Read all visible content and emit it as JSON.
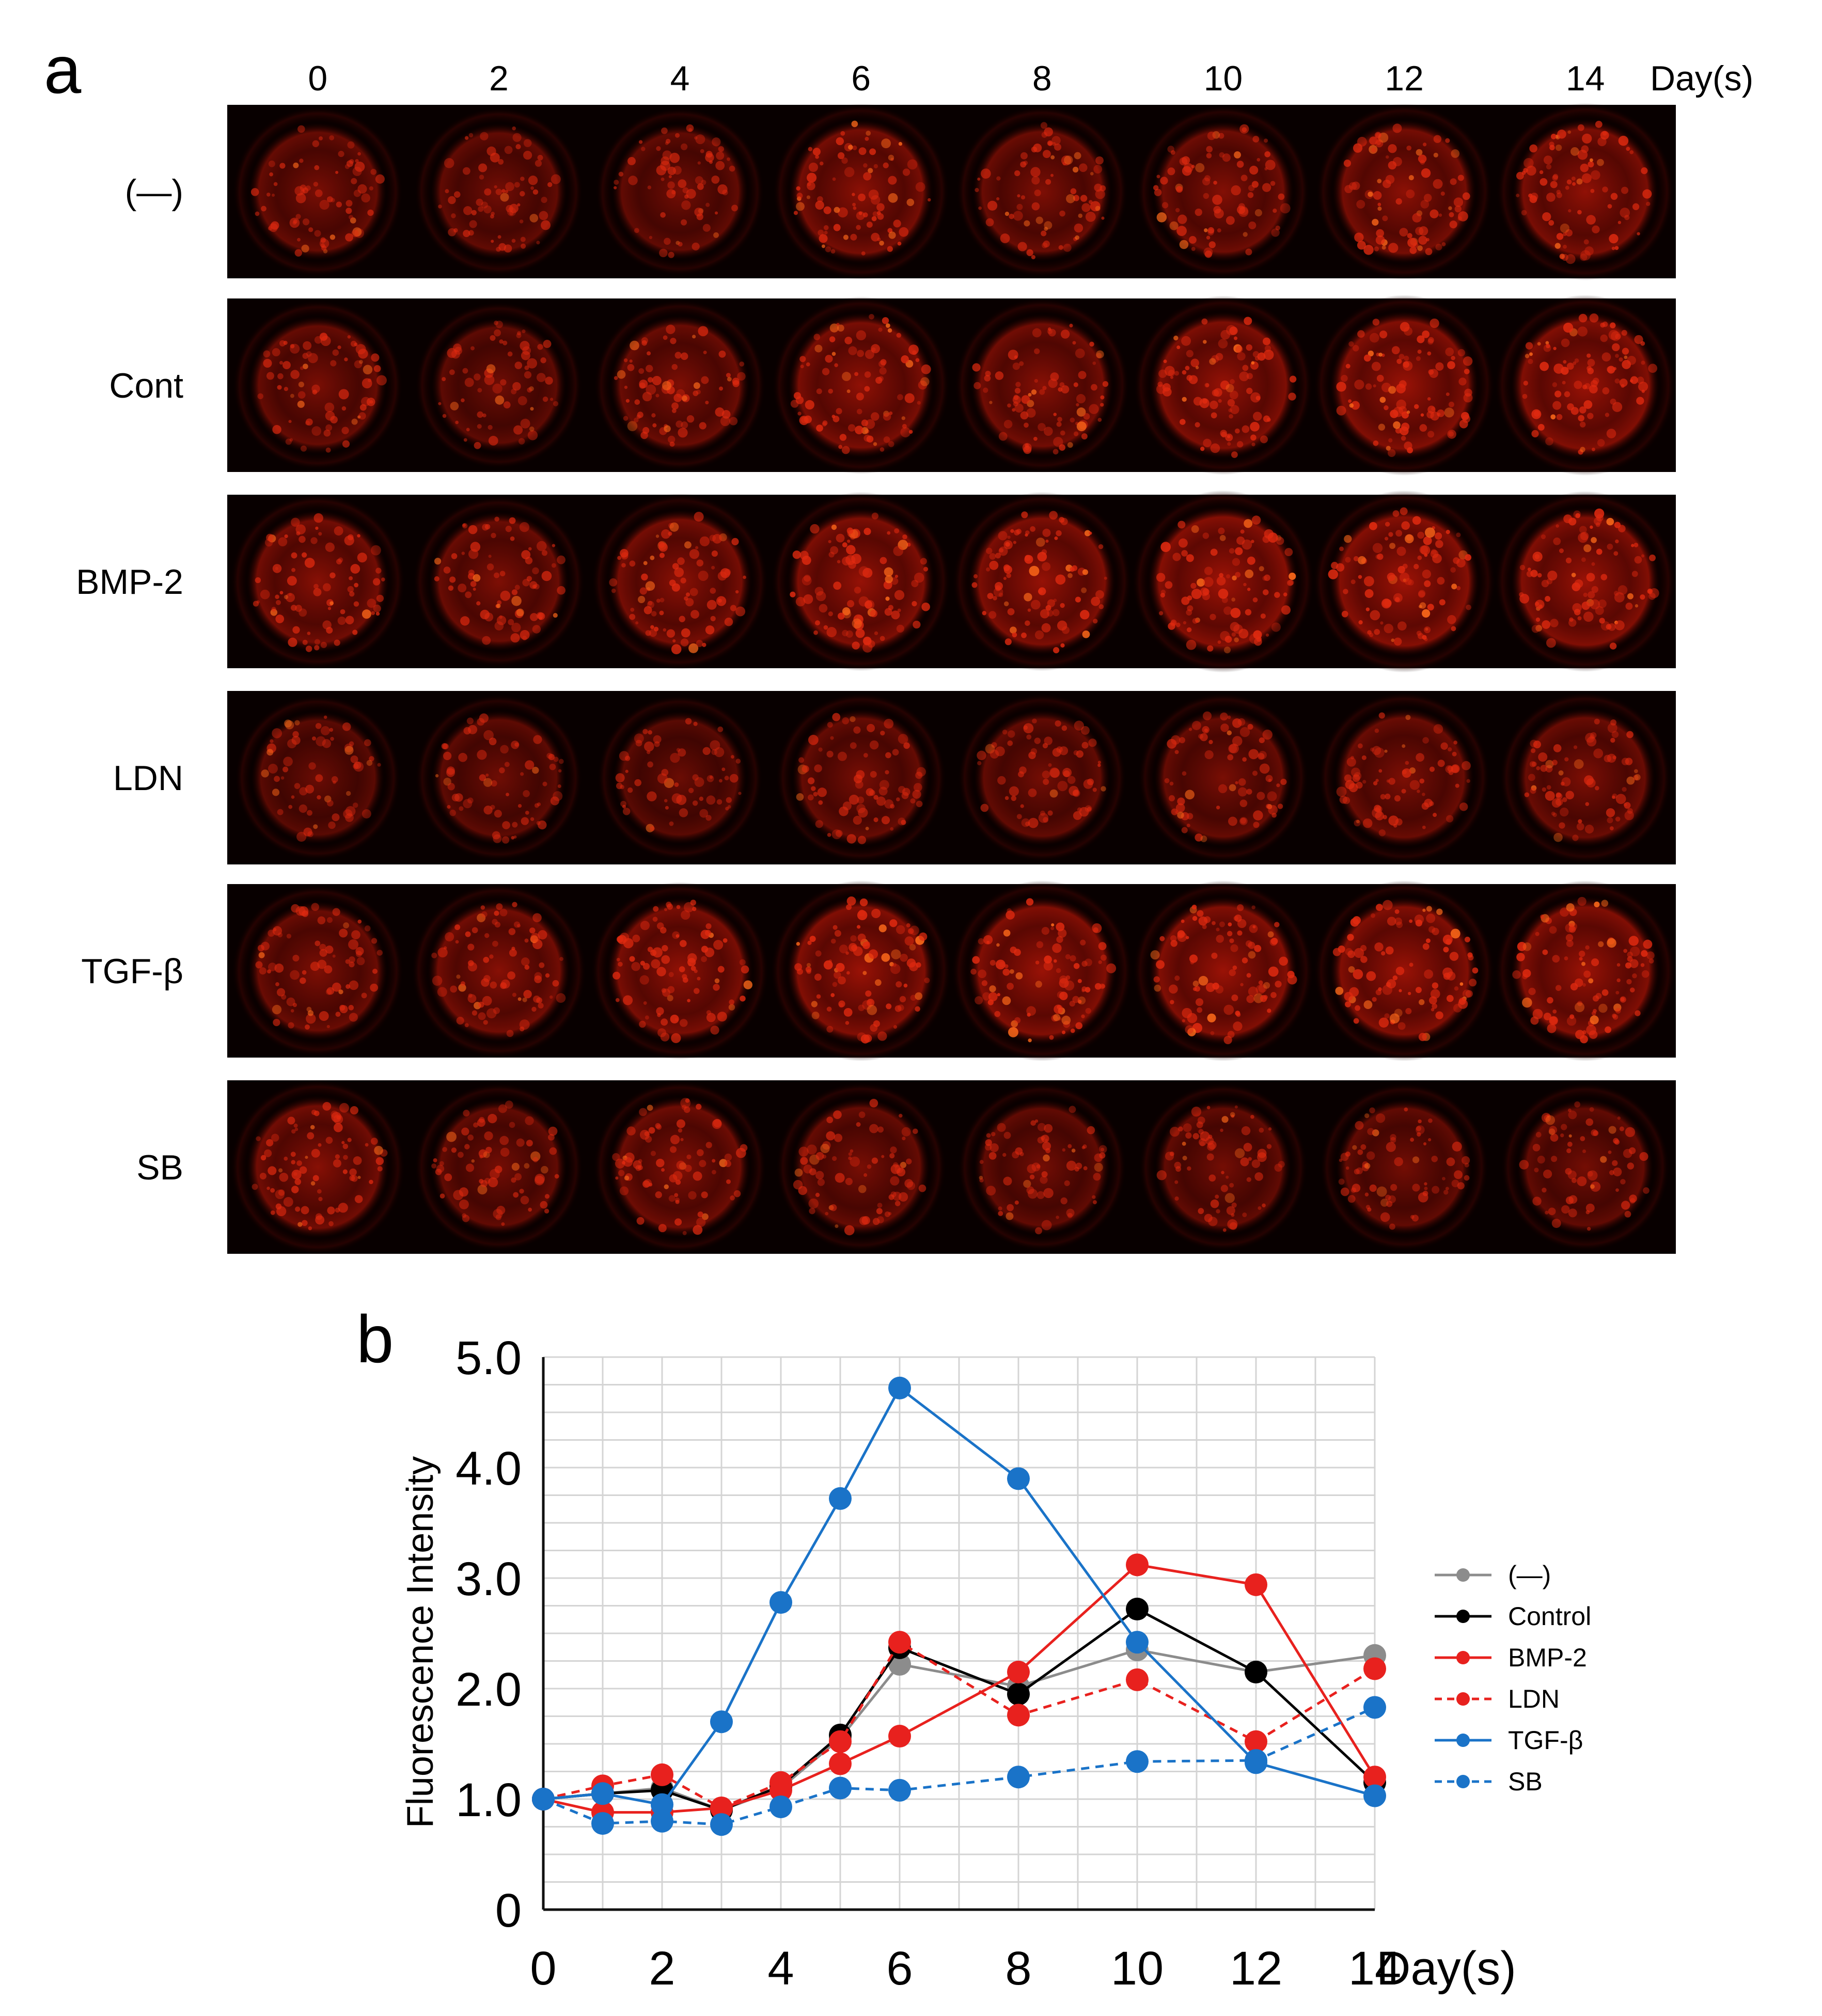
{
  "panel_a": {
    "letter": "a",
    "days": [
      "0",
      "2",
      "4",
      "6",
      "8",
      "10",
      "12",
      "14"
    ],
    "unit": "Day(s)",
    "rows": [
      {
        "label": "(—)",
        "brightness": [
          0.55,
          0.5,
          0.5,
          0.75,
          0.6,
          0.65,
          0.75,
          0.8
        ]
      },
      {
        "label": "Cont",
        "brightness": [
          0.55,
          0.45,
          0.6,
          0.8,
          0.7,
          0.85,
          0.9,
          0.9
        ]
      },
      {
        "label": "BMP-2",
        "brightness": [
          0.7,
          0.6,
          0.75,
          0.85,
          0.85,
          0.95,
          0.95,
          0.9
        ]
      },
      {
        "label": "LDN",
        "brightness": [
          0.4,
          0.45,
          0.4,
          0.55,
          0.5,
          0.55,
          0.6,
          0.6
        ]
      },
      {
        "label": "TGF-β",
        "brightness": [
          0.6,
          0.7,
          0.8,
          0.9,
          0.9,
          0.9,
          0.9,
          0.9
        ]
      },
      {
        "label": "SB",
        "brightness": [
          0.7,
          0.5,
          0.65,
          0.55,
          0.5,
          0.5,
          0.5,
          0.5
        ]
      }
    ]
  },
  "chart_data": {
    "letter": "b",
    "type": "line",
    "xlabel": "Day(s)",
    "ylabel": "Fluorescence Intensity",
    "ylim": [
      0,
      5
    ],
    "xlim": [
      0,
      14
    ],
    "x_ticks": [
      "0",
      "2",
      "4",
      "6",
      "8",
      "10",
      "12",
      "14"
    ],
    "y_ticks": [
      "0",
      "1.0",
      "2.0",
      "3.0",
      "4.0",
      "5.0"
    ],
    "grid": true,
    "legend_position": "right",
    "series": [
      {
        "name": "(—)",
        "color": "#8c8c8c",
        "dashed": false,
        "x": [
          0,
          1,
          2,
          3,
          4,
          5,
          6,
          8,
          10,
          12,
          14
        ],
        "y": [
          1.0,
          1.05,
          1.1,
          0.9,
          1.1,
          1.55,
          2.22,
          2.02,
          2.35,
          2.15,
          2.3
        ]
      },
      {
        "name": "Control",
        "color": "#000000",
        "dashed": false,
        "x": [
          0,
          1,
          2,
          3,
          4,
          5,
          6,
          8,
          10,
          12,
          14
        ],
        "y": [
          1.0,
          1.05,
          1.08,
          0.9,
          1.12,
          1.58,
          2.37,
          1.95,
          2.72,
          2.15,
          1.15
        ]
      },
      {
        "name": "BMP-2",
        "color": "#e8211e",
        "dashed": false,
        "x": [
          0,
          1,
          2,
          3,
          4,
          5,
          6,
          8,
          10,
          12,
          14
        ],
        "y": [
          1.0,
          0.88,
          0.88,
          0.92,
          1.08,
          1.32,
          1.57,
          2.15,
          3.12,
          2.94,
          1.2
        ]
      },
      {
        "name": "LDN",
        "color": "#e8211e",
        "dashed": true,
        "x": [
          0,
          1,
          2,
          3,
          4,
          5,
          6,
          8,
          10,
          12,
          14
        ],
        "y": [
          1.0,
          1.12,
          1.22,
          0.92,
          1.15,
          1.52,
          2.42,
          1.76,
          2.08,
          1.52,
          2.18
        ]
      },
      {
        "name": "TGF-β",
        "color": "#1a73c8",
        "dashed": false,
        "x": [
          0,
          1,
          2,
          3,
          4,
          5,
          6,
          8,
          10,
          12,
          14
        ],
        "y": [
          1.0,
          1.05,
          0.95,
          1.7,
          2.78,
          3.72,
          4.72,
          3.9,
          2.42,
          1.33,
          1.03
        ]
      },
      {
        "name": "SB",
        "color": "#1a73c8",
        "dashed": true,
        "x": [
          0,
          1,
          2,
          3,
          4,
          5,
          6,
          8,
          10,
          12,
          14
        ],
        "y": [
          1.0,
          0.78,
          0.8,
          0.77,
          0.93,
          1.1,
          1.08,
          1.2,
          1.34,
          1.35,
          1.83
        ]
      }
    ]
  }
}
